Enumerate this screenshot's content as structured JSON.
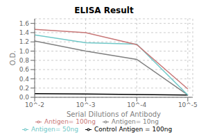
{
  "chart_data": {
    "type": "line",
    "title": "ELISA Result",
    "x_label": "Serial Dilutions of Antibody",
    "y_label": "O.D.",
    "x": [
      0.01,
      0.001,
      0.0001,
      1e-05
    ],
    "series": [
      {
        "name": "Control Antigen = 100ng",
        "color": "#000000",
        "values": [
          0.08,
          0.07,
          0.06,
          0.05
        ]
      },
      {
        "name": "Antigen= 10ng",
        "color": "#808080",
        "values": [
          1.22,
          1.0,
          0.82,
          0.05
        ]
      },
      {
        "name": "Antigen= 50ng",
        "color": "#70c8c8",
        "values": [
          1.35,
          1.18,
          1.15,
          0.05
        ]
      },
      {
        "name": "Antigen= 100ng",
        "color": "#c87878",
        "values": [
          1.47,
          1.4,
          1.14,
          0.18
        ]
      }
    ],
    "log": "x",
    "xlim": [
      0.01,
      8e-06
    ],
    "xticks": [
      {
        "value": 0.01,
        "label": "10^-2"
      },
      {
        "value": 0.001,
        "label": "10^-3"
      },
      {
        "value": 0.0001,
        "label": "10^-4"
      },
      {
        "value": 1e-05,
        "label": "10^-5"
      }
    ],
    "ylim": [
      0,
      1.7
    ],
    "yticks": [
      {
        "value": 0,
        "label": "0.0"
      },
      0.2,
      0.4,
      0.6,
      0.8,
      {
        "value": 1.0,
        "label": "1.0"
      },
      1.2,
      1.4,
      1.6
    ],
    "grid": true,
    "legend": "bottom"
  }
}
